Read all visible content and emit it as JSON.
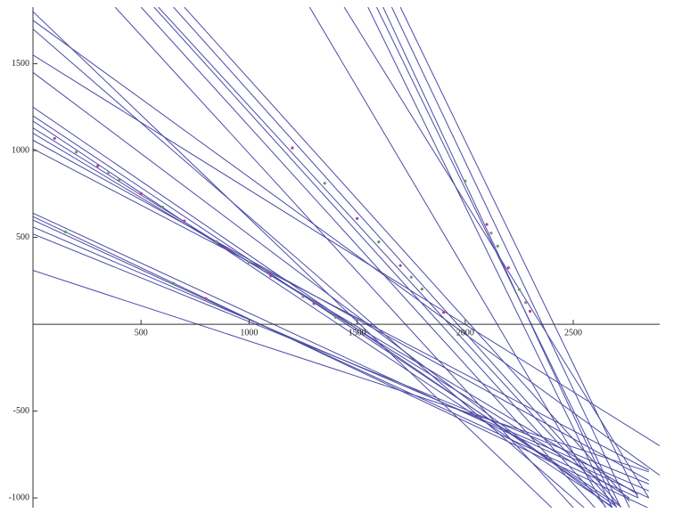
{
  "chart_data": {
    "type": "line",
    "xlim": [
      0,
      2900
    ],
    "ylim": [
      -1056,
      1826
    ],
    "xticks": [
      500,
      1000,
      1500,
      2000,
      2500
    ],
    "yticks": [
      -1000,
      -500,
      500,
      1000,
      1500
    ],
    "line_color": "#4b4ba6",
    "series": [
      {
        "x": [
          0,
          2700
        ],
        "values": [
          1250,
          -1050
        ]
      },
      {
        "x": [
          0,
          2720
        ],
        "values": [
          1200,
          -1050
        ]
      },
      {
        "x": [
          0,
          2680
        ],
        "values": [
          1170,
          -1050
        ]
      },
      {
        "x": [
          0,
          2760
        ],
        "values": [
          1130,
          -1000
        ]
      },
      {
        "x": [
          0,
          2800
        ],
        "values": [
          1100,
          -980
        ]
      },
      {
        "x": [
          0,
          2850
        ],
        "values": [
          1060,
          -900
        ]
      },
      {
        "x": [
          0,
          2850
        ],
        "values": [
          1010,
          -840
        ]
      },
      {
        "x": [
          0,
          2850
        ],
        "values": [
          640,
          -1000
        ]
      },
      {
        "x": [
          0,
          2850
        ],
        "values": [
          620,
          -1060
        ]
      },
      {
        "x": [
          0,
          2800
        ],
        "values": [
          600,
          -1000
        ]
      },
      {
        "x": [
          0,
          2850
        ],
        "values": [
          560,
          -960
        ]
      },
      {
        "x": [
          0,
          2850
        ],
        "values": [
          520,
          -920
        ]
      },
      {
        "x": [
          0,
          2850
        ],
        "values": [
          310,
          -850
        ]
      },
      {
        "x": [
          560,
          2650
        ],
        "values": [
          1826,
          -1050
        ]
      },
      {
        "x": [
          580,
          2700
        ],
        "values": [
          1826,
          -1050
        ]
      },
      {
        "x": [
          650,
          2720
        ],
        "values": [
          1826,
          -1050
        ]
      },
      {
        "x": [
          500,
          2600
        ],
        "values": [
          1826,
          -1056
        ]
      },
      {
        "x": [
          700,
          2760
        ],
        "values": [
          1826,
          -1020
        ]
      },
      {
        "x": [
          380,
          2500
        ],
        "values": [
          1826,
          -1056
        ]
      },
      {
        "x": [
          1590,
          2720
        ],
        "values": [
          1826,
          -1056
        ]
      },
      {
        "x": [
          1620,
          2700
        ],
        "values": [
          1826,
          -1056
        ]
      },
      {
        "x": [
          1660,
          2760
        ],
        "values": [
          1826,
          -1056
        ]
      },
      {
        "x": [
          1700,
          2800
        ],
        "values": [
          1826,
          -1000
        ]
      },
      {
        "x": [
          1550,
          2680
        ],
        "values": [
          1826,
          -1056
        ]
      },
      {
        "x": [
          1440,
          2850
        ],
        "values": [
          1826,
          -1000
        ]
      },
      {
        "x": [
          0,
          2400
        ],
        "values": [
          1800,
          -1056
        ]
      },
      {
        "x": [
          0,
          2550
        ],
        "values": [
          1700,
          -1056
        ]
      },
      {
        "x": [
          0,
          2680
        ],
        "values": [
          1450,
          -1056
        ]
      },
      {
        "x": [
          1280,
          2650
        ],
        "values": [
          1826,
          -1056
        ]
      },
      {
        "x": [
          0,
          2900
        ],
        "values": [
          1750,
          -870
        ]
      },
      {
        "x": [
          0,
          2900
        ],
        "values": [
          1550,
          -700
        ]
      }
    ],
    "points": [
      {
        "color": "#b03c9c",
        "x": [
          100,
          300,
          500,
          700,
          900,
          1100,
          1300,
          1500,
          1700,
          1900,
          2100,
          2200,
          2300,
          800,
          1200
        ],
        "values": [
          1070,
          912,
          753,
          595,
          436,
          278,
          119,
          609,
          338,
          68,
          575,
          325,
          75,
          148,
          1015
        ]
      },
      {
        "color": "#5aa05a",
        "x": [
          200,
          400,
          600,
          1000,
          1400,
          1600,
          1800,
          2000,
          2150,
          2250,
          150,
          650,
          1350
        ],
        "values": [
          991,
          833,
          674,
          357,
          40,
          474,
          203,
          825,
          450,
          200,
          532,
          236,
          812
        ]
      },
      {
        "color": "#888888",
        "x": [
          350,
          850,
          1250,
          1750,
          2120,
          2280
        ],
        "values": [
          873,
          476,
          159,
          271,
          525,
          125
        ]
      }
    ]
  }
}
